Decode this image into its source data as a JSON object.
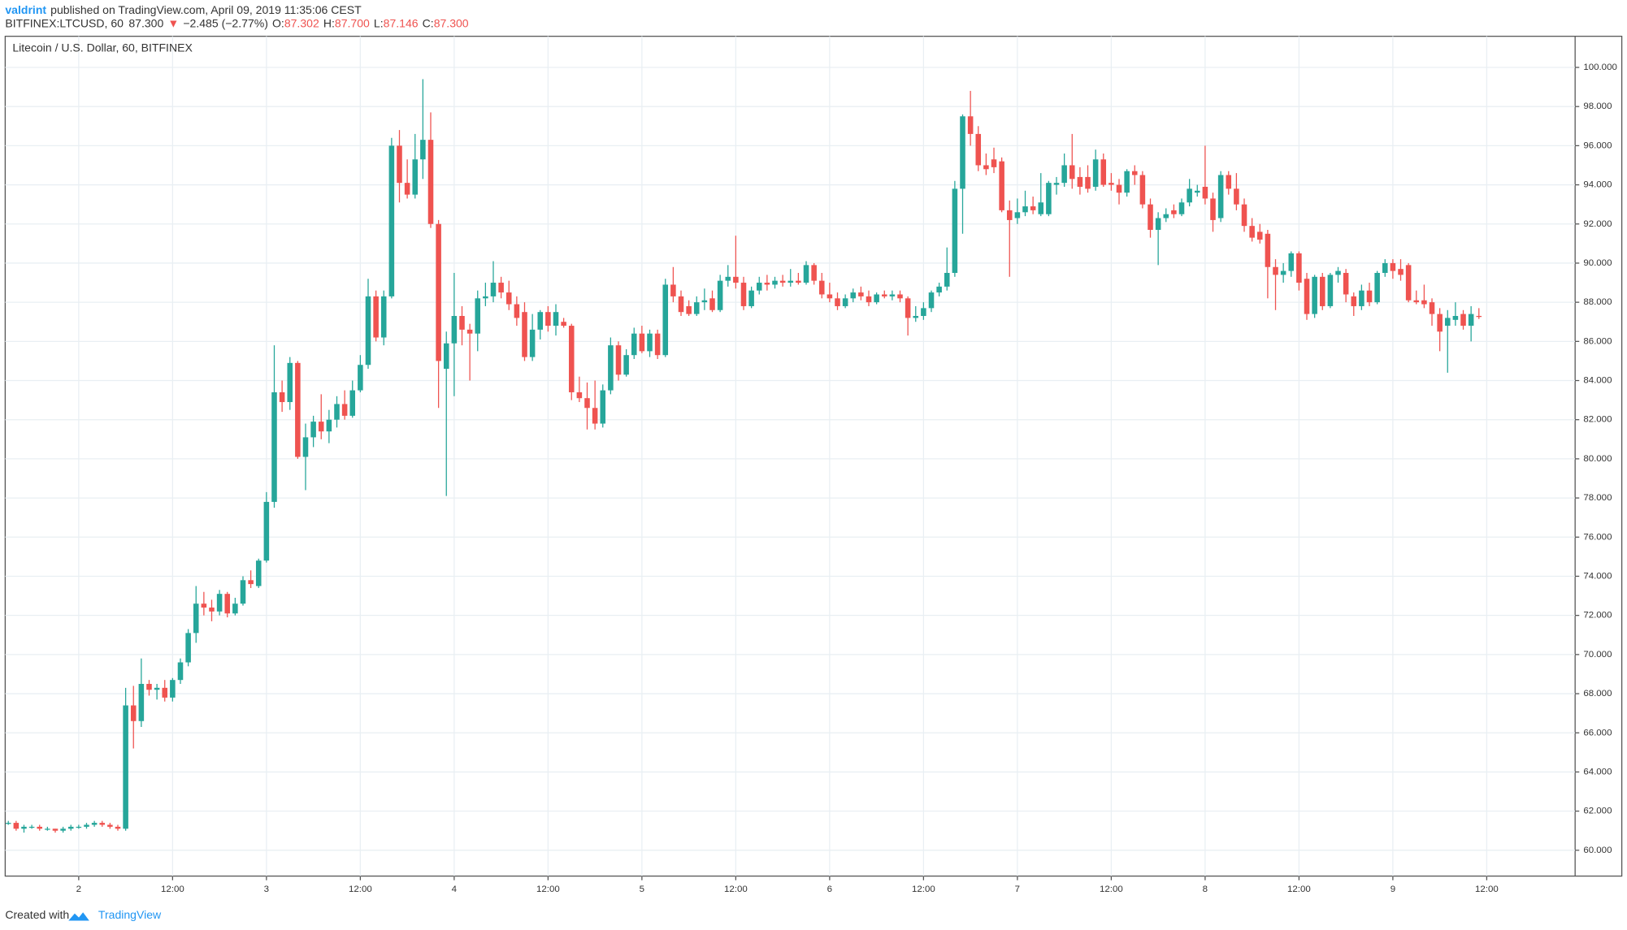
{
  "header": {
    "author": "valdrint",
    "published": "published on TradingView.com, April 09, 2019 11:35:06 CEST",
    "symbol": "BITFINEX:LTCUSD, 60",
    "last": "87.300",
    "direction": "▼",
    "change": "−2.485 (−2.77%)",
    "ohlc": [
      {
        "label": "O:",
        "value": "87.302"
      },
      {
        "label": "H:",
        "value": "87.700"
      },
      {
        "label": "L:",
        "value": "87.146"
      },
      {
        "label": "C:",
        "value": "87.300"
      }
    ]
  },
  "chart_data": {
    "type": "candlestick",
    "title": "Litecoin / U.S. Dollar, 60, BITFINEX",
    "up_color": "#26a69a",
    "down_color": "#ef5350",
    "grid": true,
    "ylim": [
      58.68,
      101.59
    ],
    "yticks": [
      {
        "value": 60,
        "label": "60.000"
      },
      {
        "value": 62,
        "label": "62.000"
      },
      {
        "value": 64,
        "label": "64.000"
      },
      {
        "value": 66,
        "label": "66.000"
      },
      {
        "value": 68,
        "label": "68.000"
      },
      {
        "value": 70,
        "label": "70.000"
      },
      {
        "value": 72,
        "label": "72.000"
      },
      {
        "value": 74,
        "label": "74.000"
      },
      {
        "value": 76,
        "label": "76.000"
      },
      {
        "value": 78,
        "label": "78.000"
      },
      {
        "value": 80,
        "label": "80.000"
      },
      {
        "value": 82,
        "label": "82.000"
      },
      {
        "value": 84,
        "label": "84.000"
      },
      {
        "value": 86,
        "label": "86.000"
      },
      {
        "value": 88,
        "label": "88.000"
      },
      {
        "value": 90,
        "label": "90.000"
      },
      {
        "value": 92,
        "label": "92.000"
      },
      {
        "value": 94,
        "label": "94.000"
      },
      {
        "value": 96,
        "label": "96.000"
      },
      {
        "value": 98,
        "label": "98.000"
      },
      {
        "value": 100,
        "label": "100.000"
      }
    ],
    "xlim": [
      -0.4,
      200.3
    ],
    "xticks": [
      {
        "value": 9,
        "label": "2"
      },
      {
        "value": 21,
        "label": "12:00"
      },
      {
        "value": 33,
        "label": "3"
      },
      {
        "value": 45,
        "label": "12:00"
      },
      {
        "value": 57,
        "label": "4"
      },
      {
        "value": 69,
        "label": "12:00"
      },
      {
        "value": 81,
        "label": "5"
      },
      {
        "value": 93,
        "label": "12:00"
      },
      {
        "value": 105,
        "label": "6"
      },
      {
        "value": 117,
        "label": "12:00"
      },
      {
        "value": 129,
        "label": "7"
      },
      {
        "value": 141,
        "label": "12:00"
      },
      {
        "value": 153,
        "label": "8"
      },
      {
        "value": 165,
        "label": "12:00"
      },
      {
        "value": 177,
        "label": "9"
      },
      {
        "value": 189,
        "label": "12:00"
      }
    ],
    "candles": [
      [
        61.4,
        61.5,
        61.3,
        61.4
      ],
      [
        61.4,
        61.5,
        61.0,
        61.1
      ],
      [
        61.1,
        61.3,
        60.9,
        61.2
      ],
      [
        61.2,
        61.3,
        61.1,
        61.2
      ],
      [
        61.2,
        61.3,
        61.0,
        61.1
      ],
      [
        61.1,
        61.2,
        61.0,
        61.1
      ],
      [
        61.1,
        61.1,
        60.9,
        61.0
      ],
      [
        61.0,
        61.2,
        60.9,
        61.1
      ],
      [
        61.1,
        61.3,
        61.0,
        61.2
      ],
      [
        61.2,
        61.3,
        61.1,
        61.2
      ],
      [
        61.2,
        61.4,
        61.1,
        61.3
      ],
      [
        61.3,
        61.5,
        61.2,
        61.4
      ],
      [
        61.4,
        61.5,
        61.2,
        61.3
      ],
      [
        61.3,
        61.4,
        61.1,
        61.2
      ],
      [
        61.2,
        61.3,
        61.0,
        61.1
      ],
      [
        61.1,
        68.3,
        61.0,
        67.4
      ],
      [
        67.4,
        68.4,
        65.2,
        66.6
      ],
      [
        66.6,
        69.8,
        66.3,
        68.5
      ],
      [
        68.5,
        68.7,
        67.9,
        68.2
      ],
      [
        68.2,
        68.5,
        67.7,
        68.3
      ],
      [
        68.3,
        68.7,
        67.6,
        67.8
      ],
      [
        67.8,
        68.8,
        67.6,
        68.7
      ],
      [
        68.7,
        69.8,
        68.5,
        69.6
      ],
      [
        69.6,
        71.3,
        69.4,
        71.1
      ],
      [
        71.1,
        73.5,
        70.6,
        72.6
      ],
      [
        72.6,
        73.2,
        72.0,
        72.4
      ],
      [
        72.4,
        72.8,
        71.7,
        72.2
      ],
      [
        72.2,
        73.3,
        72.0,
        73.1
      ],
      [
        73.1,
        73.2,
        71.9,
        72.1
      ],
      [
        72.1,
        72.9,
        72.0,
        72.6
      ],
      [
        72.6,
        74.0,
        72.5,
        73.8
      ],
      [
        73.8,
        74.3,
        73.4,
        73.6
      ],
      [
        73.5,
        74.9,
        73.4,
        74.8
      ],
      [
        74.8,
        78.3,
        74.7,
        77.8
      ],
      [
        77.8,
        85.8,
        77.5,
        83.4
      ],
      [
        83.4,
        84.0,
        82.4,
        82.9
      ],
      [
        82.9,
        85.2,
        82.5,
        84.9
      ],
      [
        84.9,
        85.0,
        80.0,
        80.1
      ],
      [
        80.1,
        81.8,
        78.4,
        81.1
      ],
      [
        81.1,
        82.2,
        80.6,
        81.9
      ],
      [
        81.9,
        83.3,
        81.0,
        81.4
      ],
      [
        81.4,
        82.5,
        80.8,
        82.0
      ],
      [
        82.0,
        83.2,
        81.6,
        82.8
      ],
      [
        82.8,
        83.5,
        82.0,
        82.2
      ],
      [
        82.2,
        84.0,
        82.1,
        83.5
      ],
      [
        83.5,
        85.3,
        83.4,
        84.8
      ],
      [
        84.8,
        89.2,
        84.6,
        88.3
      ],
      [
        88.3,
        88.6,
        86.0,
        86.2
      ],
      [
        86.2,
        88.6,
        85.8,
        88.3
      ],
      [
        88.3,
        96.4,
        88.2,
        96.0
      ],
      [
        96.0,
        96.8,
        93.1,
        94.1
      ],
      [
        94.1,
        95.3,
        93.3,
        93.5
      ],
      [
        93.5,
        96.6,
        93.3,
        95.3
      ],
      [
        95.3,
        99.4,
        94.3,
        96.3
      ],
      [
        96.3,
        97.7,
        91.8,
        92.0
      ],
      [
        92.0,
        92.2,
        82.6,
        85.0
      ],
      [
        84.6,
        86.5,
        78.1,
        85.9
      ],
      [
        85.9,
        89.5,
        83.2,
        87.3
      ],
      [
        87.3,
        87.8,
        85.8,
        86.6
      ],
      [
        86.6,
        86.9,
        84.0,
        86.4
      ],
      [
        86.4,
        88.6,
        85.5,
        88.2
      ],
      [
        88.2,
        89.0,
        87.8,
        88.3
      ],
      [
        88.3,
        90.1,
        88.0,
        89.0
      ],
      [
        89.0,
        89.3,
        88.2,
        88.5
      ],
      [
        88.5,
        89.1,
        87.6,
        87.9
      ],
      [
        87.9,
        88.3,
        86.8,
        87.2
      ],
      [
        87.5,
        88.0,
        85.0,
        85.2
      ],
      [
        85.2,
        87.4,
        85.0,
        86.6
      ],
      [
        86.6,
        87.6,
        86.1,
        87.5
      ],
      [
        87.5,
        87.8,
        86.5,
        86.8
      ],
      [
        86.8,
        87.9,
        86.3,
        87.5
      ],
      [
        87.0,
        87.2,
        86.7,
        86.8
      ],
      [
        86.8,
        86.9,
        83.0,
        83.4
      ],
      [
        83.4,
        84.2,
        82.9,
        83.1
      ],
      [
        83.1,
        83.9,
        81.5,
        82.6
      ],
      [
        82.6,
        84.0,
        81.5,
        81.8
      ],
      [
        81.8,
        83.8,
        81.6,
        83.5
      ],
      [
        83.5,
        86.2,
        83.3,
        85.8
      ],
      [
        85.8,
        86.0,
        84.0,
        84.3
      ],
      [
        84.3,
        85.6,
        84.2,
        85.3
      ],
      [
        85.3,
        86.7,
        85.1,
        86.4
      ],
      [
        86.4,
        86.8,
        85.4,
        85.5
      ],
      [
        85.5,
        86.6,
        85.2,
        86.4
      ],
      [
        86.4,
        86.6,
        85.1,
        85.3
      ],
      [
        85.3,
        89.2,
        85.2,
        88.9
      ],
      [
        88.9,
        89.8,
        88.0,
        88.3
      ],
      [
        88.3,
        88.6,
        87.3,
        87.5
      ],
      [
        87.8,
        88.1,
        87.3,
        87.4
      ],
      [
        87.4,
        88.3,
        87.3,
        88.0
      ],
      [
        88.0,
        88.7,
        87.6,
        88.1
      ],
      [
        88.2,
        88.6,
        87.5,
        87.6
      ],
      [
        87.6,
        89.4,
        87.5,
        89.1
      ],
      [
        89.1,
        89.9,
        88.8,
        89.3
      ],
      [
        89.3,
        91.4,
        88.7,
        89.0
      ],
      [
        89.0,
        89.3,
        87.6,
        87.8
      ],
      [
        87.8,
        88.8,
        87.7,
        88.6
      ],
      [
        88.6,
        89.3,
        88.4,
        89.0
      ],
      [
        89.0,
        89.4,
        88.6,
        88.9
      ],
      [
        88.9,
        89.3,
        88.7,
        89.1
      ],
      [
        89.1,
        89.4,
        88.8,
        89.0
      ],
      [
        89.0,
        89.7,
        88.8,
        89.1
      ],
      [
        89.1,
        89.5,
        88.9,
        89.0
      ],
      [
        89.0,
        90.1,
        88.9,
        89.9
      ],
      [
        89.9,
        90.0,
        88.9,
        89.1
      ],
      [
        89.1,
        89.5,
        88.2,
        88.4
      ],
      [
        88.4,
        89.0,
        88.0,
        88.2
      ],
      [
        88.2,
        88.5,
        87.6,
        87.8
      ],
      [
        87.8,
        88.4,
        87.7,
        88.2
      ],
      [
        88.2,
        88.7,
        88.0,
        88.5
      ],
      [
        88.5,
        88.8,
        88.1,
        88.3
      ],
      [
        88.3,
        88.6,
        87.8,
        88.0
      ],
      [
        88.0,
        88.5,
        87.9,
        88.4
      ],
      [
        88.4,
        88.6,
        88.2,
        88.3
      ],
      [
        88.3,
        88.6,
        88.1,
        88.4
      ],
      [
        88.4,
        88.6,
        88.0,
        88.2
      ],
      [
        88.2,
        88.3,
        86.3,
        87.2
      ],
      [
        87.2,
        87.8,
        87.0,
        87.3
      ],
      [
        87.3,
        88.0,
        87.1,
        87.7
      ],
      [
        87.7,
        88.6,
        87.5,
        88.5
      ],
      [
        88.5,
        89.0,
        88.3,
        88.8
      ],
      [
        88.8,
        90.8,
        88.6,
        89.5
      ],
      [
        89.5,
        94.2,
        89.3,
        93.8
      ],
      [
        93.8,
        97.6,
        91.5,
        97.5
      ],
      [
        97.5,
        98.8,
        96.0,
        96.6
      ],
      [
        96.6,
        97.0,
        94.7,
        95.0
      ],
      [
        95.0,
        95.6,
        94.5,
        94.8
      ],
      [
        95.3,
        95.9,
        94.6,
        94.9
      ],
      [
        95.2,
        95.4,
        92.6,
        92.7
      ],
      [
        92.7,
        93.2,
        89.3,
        92.2
      ],
      [
        92.3,
        93.3,
        92.0,
        92.6
      ],
      [
        92.6,
        93.7,
        92.4,
        92.9
      ],
      [
        92.9,
        93.4,
        92.5,
        92.7
      ],
      [
        92.5,
        94.6,
        92.4,
        93.1
      ],
      [
        92.5,
        94.2,
        92.4,
        94.1
      ],
      [
        94.0,
        94.4,
        93.5,
        94.1
      ],
      [
        94.1,
        95.6,
        93.9,
        95.0
      ],
      [
        95.0,
        96.6,
        93.8,
        94.3
      ],
      [
        94.4,
        94.9,
        93.5,
        93.9
      ],
      [
        94.4,
        95.0,
        93.6,
        93.8
      ],
      [
        93.9,
        95.8,
        93.7,
        95.3
      ],
      [
        95.3,
        95.6,
        93.9,
        94.0
      ],
      [
        94.1,
        94.6,
        93.7,
        94.0
      ],
      [
        94.0,
        94.3,
        93.0,
        93.6
      ],
      [
        93.6,
        94.8,
        93.4,
        94.7
      ],
      [
        94.7,
        95.0,
        94.0,
        94.5
      ],
      [
        94.5,
        94.7,
        92.8,
        93.0
      ],
      [
        93.0,
        93.3,
        91.3,
        91.7
      ],
      [
        91.7,
        92.6,
        89.9,
        92.3
      ],
      [
        92.3,
        92.8,
        92.1,
        92.5
      ],
      [
        92.7,
        93.0,
        92.3,
        92.5
      ],
      [
        92.5,
        93.3,
        92.4,
        93.1
      ],
      [
        93.1,
        94.3,
        92.9,
        93.8
      ],
      [
        93.6,
        94.0,
        93.4,
        93.7
      ],
      [
        93.9,
        96.0,
        93.0,
        93.3
      ],
      [
        93.3,
        93.6,
        91.6,
        92.2
      ],
      [
        92.3,
        94.7,
        92.1,
        94.5
      ],
      [
        94.5,
        94.7,
        93.5,
        93.8
      ],
      [
        93.8,
        94.6,
        92.7,
        93.0
      ],
      [
        93.0,
        93.3,
        91.6,
        91.9
      ],
      [
        91.9,
        92.3,
        91.1,
        91.3
      ],
      [
        91.6,
        92.0,
        91.0,
        91.2
      ],
      [
        91.5,
        91.7,
        88.2,
        89.8
      ],
      [
        89.8,
        90.2,
        87.6,
        89.4
      ],
      [
        89.4,
        90.0,
        89.0,
        89.6
      ],
      [
        89.6,
        90.6,
        89.3,
        90.5
      ],
      [
        90.5,
        90.6,
        88.6,
        89.0
      ],
      [
        89.2,
        89.5,
        87.1,
        87.4
      ],
      [
        87.4,
        89.4,
        87.2,
        89.3
      ],
      [
        89.3,
        89.5,
        87.6,
        87.8
      ],
      [
        87.8,
        89.5,
        87.7,
        89.4
      ],
      [
        89.4,
        89.8,
        89.0,
        89.6
      ],
      [
        89.5,
        89.7,
        88.0,
        88.4
      ],
      [
        88.3,
        88.5,
        87.3,
        87.8
      ],
      [
        87.8,
        88.9,
        87.6,
        88.6
      ],
      [
        88.6,
        89.0,
        87.8,
        88.0
      ],
      [
        88.0,
        89.6,
        87.9,
        89.5
      ],
      [
        89.5,
        90.2,
        89.3,
        90.0
      ],
      [
        90.0,
        90.2,
        89.2,
        89.6
      ],
      [
        89.7,
        90.2,
        89.1,
        89.4
      ],
      [
        89.9,
        90.0,
        88.0,
        88.1
      ],
      [
        88.1,
        88.6,
        87.9,
        88.0
      ],
      [
        88.1,
        88.9,
        87.7,
        87.9
      ],
      [
        88.0,
        88.2,
        86.8,
        87.4
      ],
      [
        87.4,
        87.7,
        85.5,
        86.5
      ],
      [
        86.8,
        87.6,
        84.4,
        87.2
      ],
      [
        87.1,
        88.0,
        86.8,
        87.3
      ],
      [
        87.4,
        87.6,
        86.6,
        86.8
      ],
      [
        86.8,
        87.8,
        86.0,
        87.4
      ],
      [
        87.302,
        87.7,
        87.146,
        87.3
      ]
    ]
  },
  "footer": {
    "text": "Created with",
    "brand": "TradingView"
  }
}
